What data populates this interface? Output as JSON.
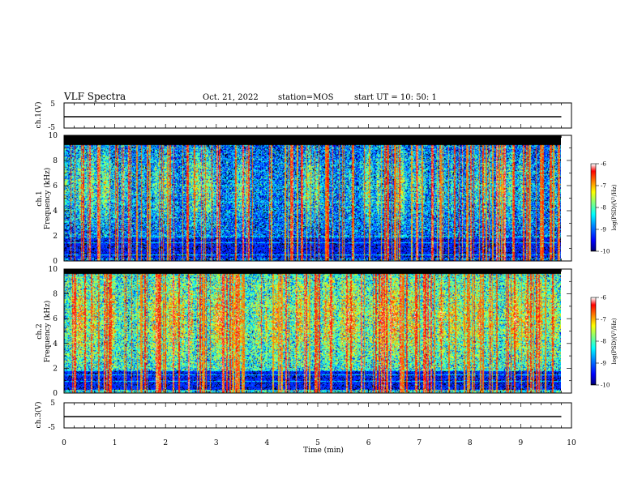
{
  "header": {
    "title": "VLF Spectra",
    "date": "Oct. 21, 2022",
    "station": "station=MOS",
    "start": "start UT = 10: 50: 1"
  },
  "chart_data": [
    {
      "type": "line",
      "panel": "ch1-waveform",
      "ylabel": "ch.1(V)",
      "ylim": [
        -5,
        5
      ],
      "yticks": [
        "5",
        "-5"
      ],
      "xlim": [
        0,
        10
      ],
      "x": [
        0,
        9.8
      ],
      "y": [
        0,
        0
      ]
    },
    {
      "type": "heatmap",
      "panel": "ch1-spectrogram",
      "ylabel": "ch.1 Frequency (kHz)",
      "ylim": [
        0,
        10
      ],
      "yticks": [
        "0",
        "2",
        "4",
        "6",
        "8",
        "10"
      ],
      "xlim": [
        0,
        10
      ],
      "data_xmax": 9.8,
      "colorbar": {
        "label": "log(PSD)(V²/Hz)",
        "range": [
          -10,
          -6
        ],
        "ticks": [
          "-6",
          "-7",
          "-8",
          "-9",
          "-10"
        ]
      },
      "background_level": -9.0,
      "top_cutoff_khz": 9.2,
      "low_band_khz": [
        0.3,
        1.8
      ],
      "horizontal_lines_khz": [
        0.5,
        1.5,
        2.0,
        4.7,
        6.0
      ],
      "colors": [
        "#00007f",
        "#0000ff",
        "#0080ff",
        "#00ffff",
        "#80ff80",
        "#ffff00",
        "#ff8000",
        "#ff0000",
        "#ffffff"
      ]
    },
    {
      "type": "heatmap",
      "panel": "ch2-spectrogram",
      "ylabel": "ch.2 Frequency (kHz)",
      "ylim": [
        0,
        10
      ],
      "yticks": [
        "0",
        "2",
        "4",
        "6",
        "8",
        "10"
      ],
      "xlim": [
        0,
        10
      ],
      "data_xmax": 9.8,
      "colorbar": {
        "label": "log(PSD)(V²/Hz)",
        "range": [
          -10,
          -6
        ],
        "ticks": [
          "-6",
          "-7",
          "-8",
          "-9",
          "-10"
        ]
      },
      "background_level": -8.2,
      "top_cutoff_khz": 9.6,
      "low_band_khz": [
        0.3,
        1.8
      ],
      "horizontal_lines_khz": [
        1.0,
        1.5,
        1.8,
        4.0
      ],
      "colors": [
        "#00007f",
        "#0000ff",
        "#0080ff",
        "#00ffff",
        "#80ff80",
        "#ffff00",
        "#ff8000",
        "#ff0000",
        "#ffffff"
      ]
    },
    {
      "type": "line",
      "panel": "ch3-waveform",
      "ylabel": "ch.3(V)",
      "ylim": [
        -5,
        5
      ],
      "yticks": [
        "5",
        "-5"
      ],
      "xlim": [
        0,
        10
      ],
      "x": [
        0,
        9.8
      ],
      "y": [
        0,
        0
      ]
    }
  ],
  "xaxis": {
    "label": "Time (min)",
    "ticks": [
      "0",
      "1",
      "2",
      "3",
      "4",
      "5",
      "6",
      "7",
      "8",
      "9",
      "10"
    ]
  }
}
